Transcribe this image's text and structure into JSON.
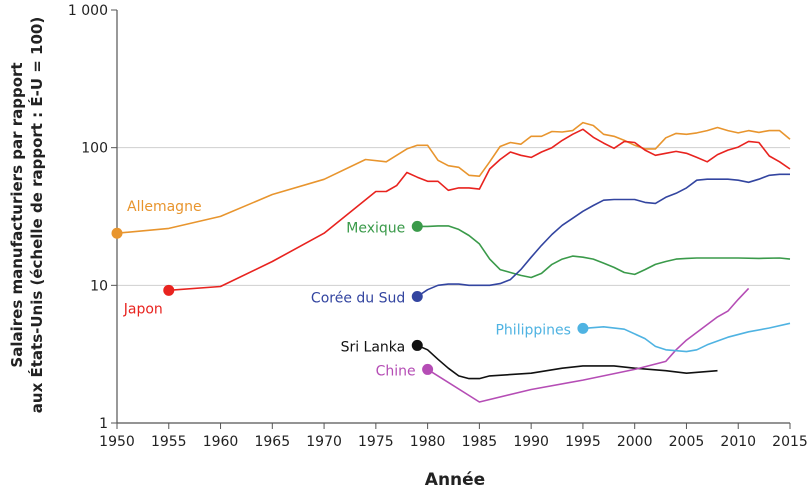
{
  "chart_data": {
    "type": "line",
    "title": "",
    "xlabel": "Année",
    "ylabel_lines": [
      "Salaires manufacturiers par rapport",
      "aux États-Unis (échelle de rapport : É-U = 100)"
    ],
    "y_scale": "log",
    "ylim": [
      1,
      1000
    ],
    "xlim": [
      1950,
      2015
    ],
    "y_ticks": [
      {
        "value": 1,
        "label": "1"
      },
      {
        "value": 10,
        "label": "10"
      },
      {
        "value": 100,
        "label": "100"
      },
      {
        "value": 1000,
        "label": "1 000"
      }
    ],
    "x_ticks": [
      "1950",
      "1955",
      "1960",
      "1965",
      "1970",
      "1975",
      "1980",
      "1985",
      "1990",
      "1995",
      "2000",
      "2005",
      "2010",
      "2015"
    ],
    "grid": "horizontal at 10 and 100",
    "legend": "inline labels",
    "series": [
      {
        "name": "Allemagne",
        "color": "#e8952e",
        "x": [
          1950,
          1955,
          1960,
          1965,
          1970,
          1974,
          1976,
          1978,
          1979,
          1980,
          1981,
          1982,
          1983,
          1984,
          1985,
          1986,
          1987,
          1988,
          1989,
          1990,
          1991,
          1992,
          1993,
          1994,
          1995,
          1996,
          1997,
          1998,
          1999,
          2000,
          2001,
          2002,
          2003,
          2004,
          2005,
          2006,
          2007,
          2008,
          2009,
          2010,
          2011,
          2012,
          2013,
          2014,
          2015
        ],
        "y": [
          23.9,
          25.9,
          31.7,
          45.7,
          58.9,
          82,
          79,
          98,
          104,
          104,
          81,
          74,
          72,
          63,
          62,
          79,
          102,
          109,
          106,
          121,
          121,
          131,
          130,
          133,
          152,
          145,
          125,
          121,
          113,
          104,
          98,
          98,
          118,
          127,
          125,
          128,
          133,
          140,
          133,
          128,
          133,
          129,
          133,
          133,
          115
        ]
      },
      {
        "name": "Japon",
        "color": "#e8231f",
        "x": [
          1955,
          1960,
          1965,
          1970,
          1975,
          1976,
          1977,
          1978,
          1979,
          1980,
          1981,
          1982,
          1983,
          1984,
          1985,
          1986,
          1987,
          1988,
          1989,
          1990,
          1991,
          1992,
          1993,
          1994,
          1995,
          1996,
          1997,
          1998,
          1999,
          2000,
          2001,
          2002,
          2003,
          2004,
          2005,
          2006,
          2007,
          2008,
          2009,
          2010,
          2011,
          2012,
          2013,
          2014,
          2015
        ],
        "y": [
          9.2,
          9.8,
          14.9,
          23.9,
          48,
          48,
          53,
          66,
          61,
          57,
          57,
          49,
          51,
          51,
          50,
          70,
          82,
          93,
          88,
          85,
          93,
          100,
          113,
          125,
          136,
          119,
          108,
          99,
          111,
          109,
          96,
          88,
          91,
          94,
          91,
          85,
          79,
          89,
          96,
          101,
          111,
          109,
          87,
          79,
          70
        ]
      },
      {
        "name": "Mexique",
        "color": "#3a9a4a",
        "x": [
          1979,
          1980,
          1981,
          1982,
          1983,
          1984,
          1985,
          1986,
          1987,
          1988,
          1989,
          1990,
          1991,
          1992,
          1993,
          1994,
          1995,
          1996,
          1997,
          1998,
          1999,
          2000,
          2001,
          2002,
          2003,
          2004,
          2005,
          2006,
          2008,
          2010,
          2012,
          2014,
          2015
        ],
        "y": [
          26.8,
          26.8,
          27,
          27,
          25.5,
          23,
          20,
          15.5,
          13,
          12.4,
          11.8,
          11.4,
          12.2,
          14.2,
          15.5,
          16.3,
          16,
          15.5,
          14.5,
          13.5,
          12.4,
          12,
          13,
          14.2,
          14.9,
          15.5,
          15.7,
          15.8,
          15.8,
          15.8,
          15.7,
          15.8,
          15.5
        ]
      },
      {
        "name": "Corée du Sud",
        "color": "#3345a0",
        "x": [
          1979,
          1980,
          1981,
          1982,
          1983,
          1984,
          1985,
          1986,
          1987,
          1988,
          1989,
          1990,
          1991,
          1992,
          1993,
          1994,
          1995,
          1996,
          1997,
          1998,
          1999,
          2000,
          2001,
          2002,
          2003,
          2004,
          2005,
          2006,
          2007,
          2008,
          2009,
          2010,
          2011,
          2012,
          2013,
          2014,
          2015
        ],
        "y": [
          8.3,
          9.3,
          10,
          10.2,
          10.2,
          10,
          10,
          10,
          10.3,
          11,
          13,
          16,
          19.5,
          23.4,
          27.3,
          30.7,
          34.5,
          38,
          41.5,
          42,
          42,
          42,
          40,
          39.4,
          43.6,
          46.6,
          51,
          58,
          59,
          59,
          59,
          58,
          56,
          59,
          63,
          64,
          64
        ]
      },
      {
        "name": "Sri Lanka",
        "color": "#111111",
        "x": [
          1979,
          1980,
          1981,
          1982,
          1983,
          1984,
          1985,
          1986,
          1990,
          1993,
          1995,
          1998,
          2000,
          2003,
          2005,
          2008
        ],
        "y": [
          3.66,
          3.4,
          2.9,
          2.5,
          2.2,
          2.1,
          2.1,
          2.2,
          2.3,
          2.5,
          2.6,
          2.6,
          2.5,
          2.4,
          2.3,
          2.4
        ]
      },
      {
        "name": "Chine",
        "color": "#b54db5",
        "x": [
          1980,
          1985,
          1990,
          1995,
          2000,
          2003,
          2004,
          2005,
          2008,
          2009,
          2010,
          2011
        ],
        "y": [
          2.45,
          1.42,
          1.75,
          2.05,
          2.45,
          2.8,
          3.4,
          4.0,
          5.9,
          6.5,
          7.9,
          9.5
        ]
      },
      {
        "name": "Philippines",
        "color": "#4fb3e2",
        "x": [
          1995,
          1997,
          1999,
          2001,
          2002,
          2003,
          2005,
          2006,
          2007,
          2009,
          2011,
          2013,
          2015
        ],
        "y": [
          4.87,
          5.0,
          4.8,
          4.1,
          3.6,
          3.4,
          3.3,
          3.4,
          3.7,
          4.2,
          4.6,
          4.9,
          5.3
        ]
      }
    ]
  }
}
